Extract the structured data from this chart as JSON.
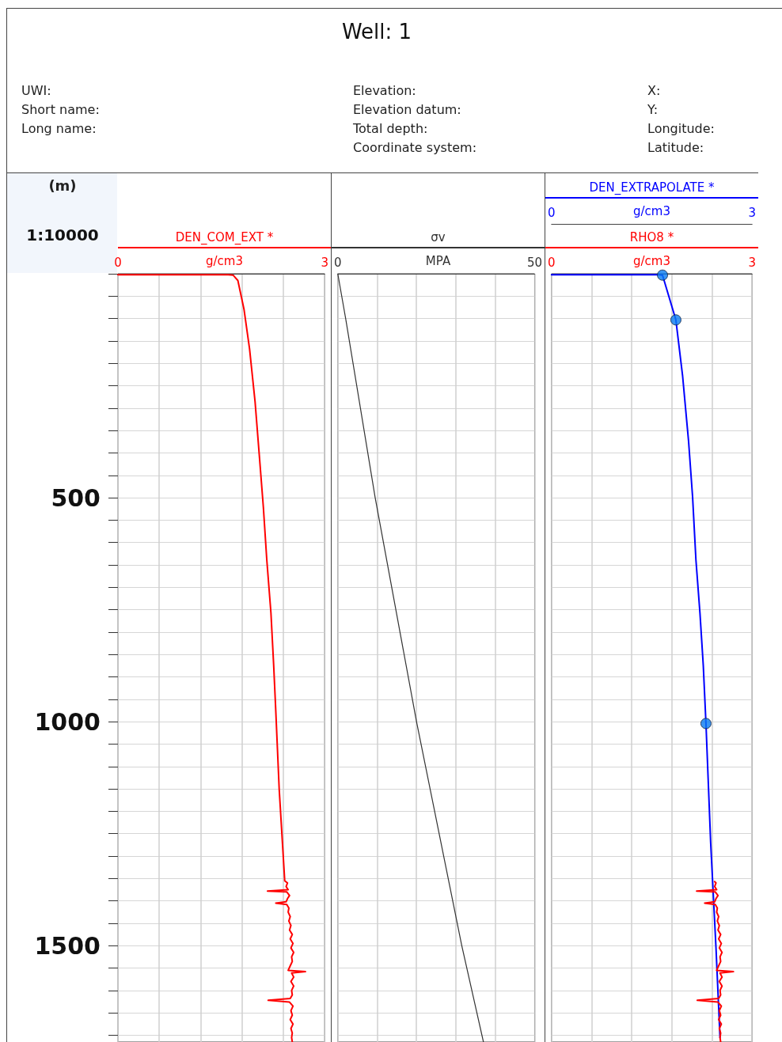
{
  "chart_data": [
    {
      "type": "other",
      "title": "Well: 1",
      "annotations": [
        "UWI:",
        "Short name:",
        "Long name:",
        "Elevation:",
        "Elevation datum:",
        "Total depth:",
        "Coordinate system:",
        "X:",
        "Y:",
        "Longitude:",
        "Latitude:"
      ]
    },
    {
      "type": "line",
      "ylabel": "(m)",
      "xlabel": "g/cm3",
      "annotations": [
        "1:10000"
      ],
      "xlim": [
        0,
        3
      ],
      "xticks": [
        0,
        {
          "value": 0.6,
          "label": null
        },
        {
          "value": 1.2,
          "label": null
        },
        {
          "value": 1.8,
          "label": null
        },
        {
          "value": 2.4,
          "label": null
        },
        3
      ],
      "ylim": [
        1715,
        0
      ],
      "yticks": [
        {
          "value": 0,
          "label": null
        },
        {
          "value": 50,
          "label": null
        },
        {
          "value": 100,
          "label": null
        },
        {
          "value": 150,
          "label": null
        },
        {
          "value": 200,
          "label": null
        },
        {
          "value": 250,
          "label": null
        },
        {
          "value": 300,
          "label": null
        },
        {
          "value": 350,
          "label": null
        },
        {
          "value": 400,
          "label": null
        },
        {
          "value": 450,
          "label": null
        },
        500,
        {
          "value": 550,
          "label": null
        },
        {
          "value": 600,
          "label": null
        },
        {
          "value": 650,
          "label": null
        },
        {
          "value": 700,
          "label": null
        },
        {
          "value": 750,
          "label": null
        },
        {
          "value": 800,
          "label": null
        },
        {
          "value": 850,
          "label": null
        },
        {
          "value": 900,
          "label": null
        },
        {
          "value": 950,
          "label": null
        },
        1000,
        {
          "value": 1050,
          "label": null
        },
        {
          "value": 1100,
          "label": null
        },
        {
          "value": 1150,
          "label": null
        },
        {
          "value": 1200,
          "label": null
        },
        {
          "value": 1250,
          "label": null
        },
        {
          "value": 1300,
          "label": null
        },
        {
          "value": 1350,
          "label": null
        },
        {
          "value": 1400,
          "label": null
        },
        {
          "value": 1450,
          "label": null
        },
        1500,
        {
          "value": 1550,
          "label": null
        },
        {
          "value": 1600,
          "label": null
        },
        {
          "value": 1650,
          "label": null
        },
        {
          "value": 1700,
          "label": null
        }
      ],
      "grid": true,
      "series": [
        {
          "name": "DEN_COM_EXT *",
          "color": "#ff0000",
          "x": [
            0,
            1.6,
            1.67,
            1.74,
            1.83,
            1.91,
            1.99,
            2.05,
            2.11,
            2.16,
            2.22,
            2.26,
            2.29,
            2.34,
            2.42,
            2.46,
            2.44,
            2.47,
            2.17,
            2.45,
            2.49,
            2.46,
            2.44,
            2.29,
            2.45,
            2.48,
            2.47,
            2.5,
            2.48,
            2.51,
            2.49,
            2.53,
            2.5,
            2.54,
            2.51,
            2.55,
            2.52,
            2.53,
            2.5,
            2.47,
            2.72,
            2.52,
            2.55,
            2.51,
            2.55,
            2.52,
            2.53,
            2.5,
            2.18,
            2.49,
            2.54,
            2.51,
            2.53,
            2.5,
            2.54,
            2.51,
            2.53,
            2.52,
            2.53
          ],
          "values": [
            2,
            2,
            3,
            15,
            80,
            168,
            286,
            403,
            521,
            639,
            757,
            875,
            975,
            1151,
            1355,
            1360,
            1368,
            1375,
            1378,
            1380,
            1388,
            1395,
            1402,
            1405,
            1408,
            1416,
            1425,
            1435,
            1445,
            1455,
            1465,
            1475,
            1485,
            1495,
            1505,
            1515,
            1525,
            1535,
            1545,
            1555,
            1558,
            1561,
            1570,
            1580,
            1590,
            1600,
            1610,
            1618,
            1622,
            1626,
            1635,
            1645,
            1655,
            1665,
            1675,
            1685,
            1695,
            1705,
            1715
          ]
        }
      ]
    },
    {
      "type": "line",
      "xlabel": "MPA",
      "tick_labels": "x",
      "xlim": [
        0,
        50
      ],
      "xticks": [
        0,
        {
          "value": 10,
          "label": null
        },
        {
          "value": 20,
          "label": null
        },
        {
          "value": 30,
          "label": null
        },
        {
          "value": 40,
          "label": null
        },
        50
      ],
      "ylim": [
        1715,
        0
      ],
      "yticks": [
        {
          "value": 0,
          "label": null
        },
        {
          "value": 50,
          "label": null
        },
        {
          "value": 100,
          "label": null
        },
        {
          "value": 150,
          "label": null
        },
        {
          "value": 200,
          "label": null
        },
        {
          "value": 250,
          "label": null
        },
        {
          "value": 300,
          "label": null
        },
        {
          "value": 350,
          "label": null
        },
        {
          "value": 400,
          "label": null
        },
        {
          "value": 450,
          "label": null
        },
        500,
        {
          "value": 550,
          "label": null
        },
        {
          "value": 600,
          "label": null
        },
        {
          "value": 650,
          "label": null
        },
        {
          "value": 700,
          "label": null
        },
        {
          "value": 750,
          "label": null
        },
        {
          "value": 800,
          "label": null
        },
        {
          "value": 850,
          "label": null
        },
        {
          "value": 900,
          "label": null
        },
        {
          "value": 950,
          "label": null
        },
        1000,
        {
          "value": 1050,
          "label": null
        },
        {
          "value": 1100,
          "label": null
        },
        {
          "value": 1150,
          "label": null
        },
        {
          "value": 1200,
          "label": null
        },
        {
          "value": 1250,
          "label": null
        },
        {
          "value": 1300,
          "label": null
        },
        {
          "value": 1350,
          "label": null
        },
        {
          "value": 1400,
          "label": null
        },
        {
          "value": 1450,
          "label": null
        },
        1500,
        {
          "value": 1550,
          "label": null
        },
        {
          "value": 1600,
          "label": null
        },
        {
          "value": 1650,
          "label": null
        },
        {
          "value": 1700,
          "label": null
        }
      ],
      "grid": true,
      "series": [
        {
          "name": "σv",
          "color": "#333333",
          "x": [
            0,
            2,
            9.5,
            20,
            31.5,
            37
          ],
          "values": [
            0,
            100,
            500,
            1000,
            1500,
            1715
          ]
        }
      ]
    },
    {
      "type": "line",
      "xlabel": "g/cm3",
      "x2label": "g/cm3",
      "tick_labels": "x",
      "xlim": [
        0,
        3
      ],
      "xticks": [
        0,
        {
          "value": 0.6,
          "label": null
        },
        {
          "value": 1.2,
          "label": null
        },
        {
          "value": 1.8,
          "label": null
        },
        {
          "value": 2.4,
          "label": null
        },
        3
      ],
      "x2lim": [
        0,
        3
      ],
      "x2ticks": [
        0,
        3
      ],
      "ylim": [
        1715,
        0
      ],
      "yticks": [
        {
          "value": 0,
          "label": null
        },
        {
          "value": 50,
          "label": null
        },
        {
          "value": 100,
          "label": null
        },
        {
          "value": 150,
          "label": null
        },
        {
          "value": 200,
          "label": null
        },
        {
          "value": 250,
          "label": null
        },
        {
          "value": 300,
          "label": null
        },
        {
          "value": 350,
          "label": null
        },
        {
          "value": 400,
          "label": null
        },
        {
          "value": 450,
          "label": null
        },
        500,
        {
          "value": 550,
          "label": null
        },
        {
          "value": 600,
          "label": null
        },
        {
          "value": 650,
          "label": null
        },
        {
          "value": 700,
          "label": null
        },
        {
          "value": 750,
          "label": null
        },
        {
          "value": 800,
          "label": null
        },
        {
          "value": 850,
          "label": null
        },
        {
          "value": 900,
          "label": null
        },
        {
          "value": 950,
          "label": null
        },
        1000,
        {
          "value": 1050,
          "label": null
        },
        {
          "value": 1100,
          "label": null
        },
        {
          "value": 1150,
          "label": null
        },
        {
          "value": 1200,
          "label": null
        },
        {
          "value": 1250,
          "label": null
        },
        {
          "value": 1300,
          "label": null
        },
        {
          "value": 1350,
          "label": null
        },
        {
          "value": 1400,
          "label": null
        },
        {
          "value": 1450,
          "label": null
        },
        1500,
        {
          "value": 1550,
          "label": null
        },
        {
          "value": 1600,
          "label": null
        },
        {
          "value": 1650,
          "label": null
        },
        {
          "value": 1700,
          "label": null
        }
      ],
      "grid": true,
      "series": [
        {
          "name": "DEN_EXTRAPOLATE *",
          "axis": "x2",
          "color": "#0000ff",
          "x": [
            0,
            1.6,
            1.66,
            1.86,
            1.96,
            2.05,
            2.11,
            2.16,
            2.22,
            2.27,
            2.31,
            2.38,
            2.46,
            2.52
          ],
          "values": [
            2,
            2,
            3,
            103,
            227,
            374,
            498,
            639,
            757,
            875,
            1004,
            1269,
            1505,
            1705
          ]
        },
        {
          "type": "scatter",
          "axis": "x2",
          "marker": "circle",
          "color": "#0a7cf0",
          "x": [
            1.66,
            1.86,
            2.31
          ],
          "values": [
            3,
            103,
            1004
          ]
        },
        {
          "name": "RHO8 *",
          "color": "#ff0000",
          "x": [
            2.44,
            2.46,
            2.44,
            2.47,
            2.17,
            2.45,
            2.49,
            2.46,
            2.44,
            2.29,
            2.45,
            2.48,
            2.47,
            2.5,
            2.48,
            2.51,
            2.49,
            2.53,
            2.5,
            2.54,
            2.51,
            2.55,
            2.52,
            2.53,
            2.5,
            2.47,
            2.72,
            2.52,
            2.55,
            2.51,
            2.55,
            2.52,
            2.53,
            2.5,
            2.18,
            2.49,
            2.54,
            2.51,
            2.53,
            2.5,
            2.54,
            2.51,
            2.53,
            2.52,
            2.53
          ],
          "values": [
            1357,
            1360,
            1368,
            1375,
            1378,
            1380,
            1388,
            1395,
            1402,
            1405,
            1408,
            1416,
            1425,
            1435,
            1445,
            1455,
            1465,
            1475,
            1485,
            1495,
            1505,
            1515,
            1525,
            1535,
            1545,
            1555,
            1558,
            1561,
            1570,
            1580,
            1590,
            1600,
            1610,
            1618,
            1622,
            1626,
            1635,
            1645,
            1655,
            1665,
            1675,
            1685,
            1695,
            1705,
            1715
          ]
        }
      ]
    }
  ]
}
